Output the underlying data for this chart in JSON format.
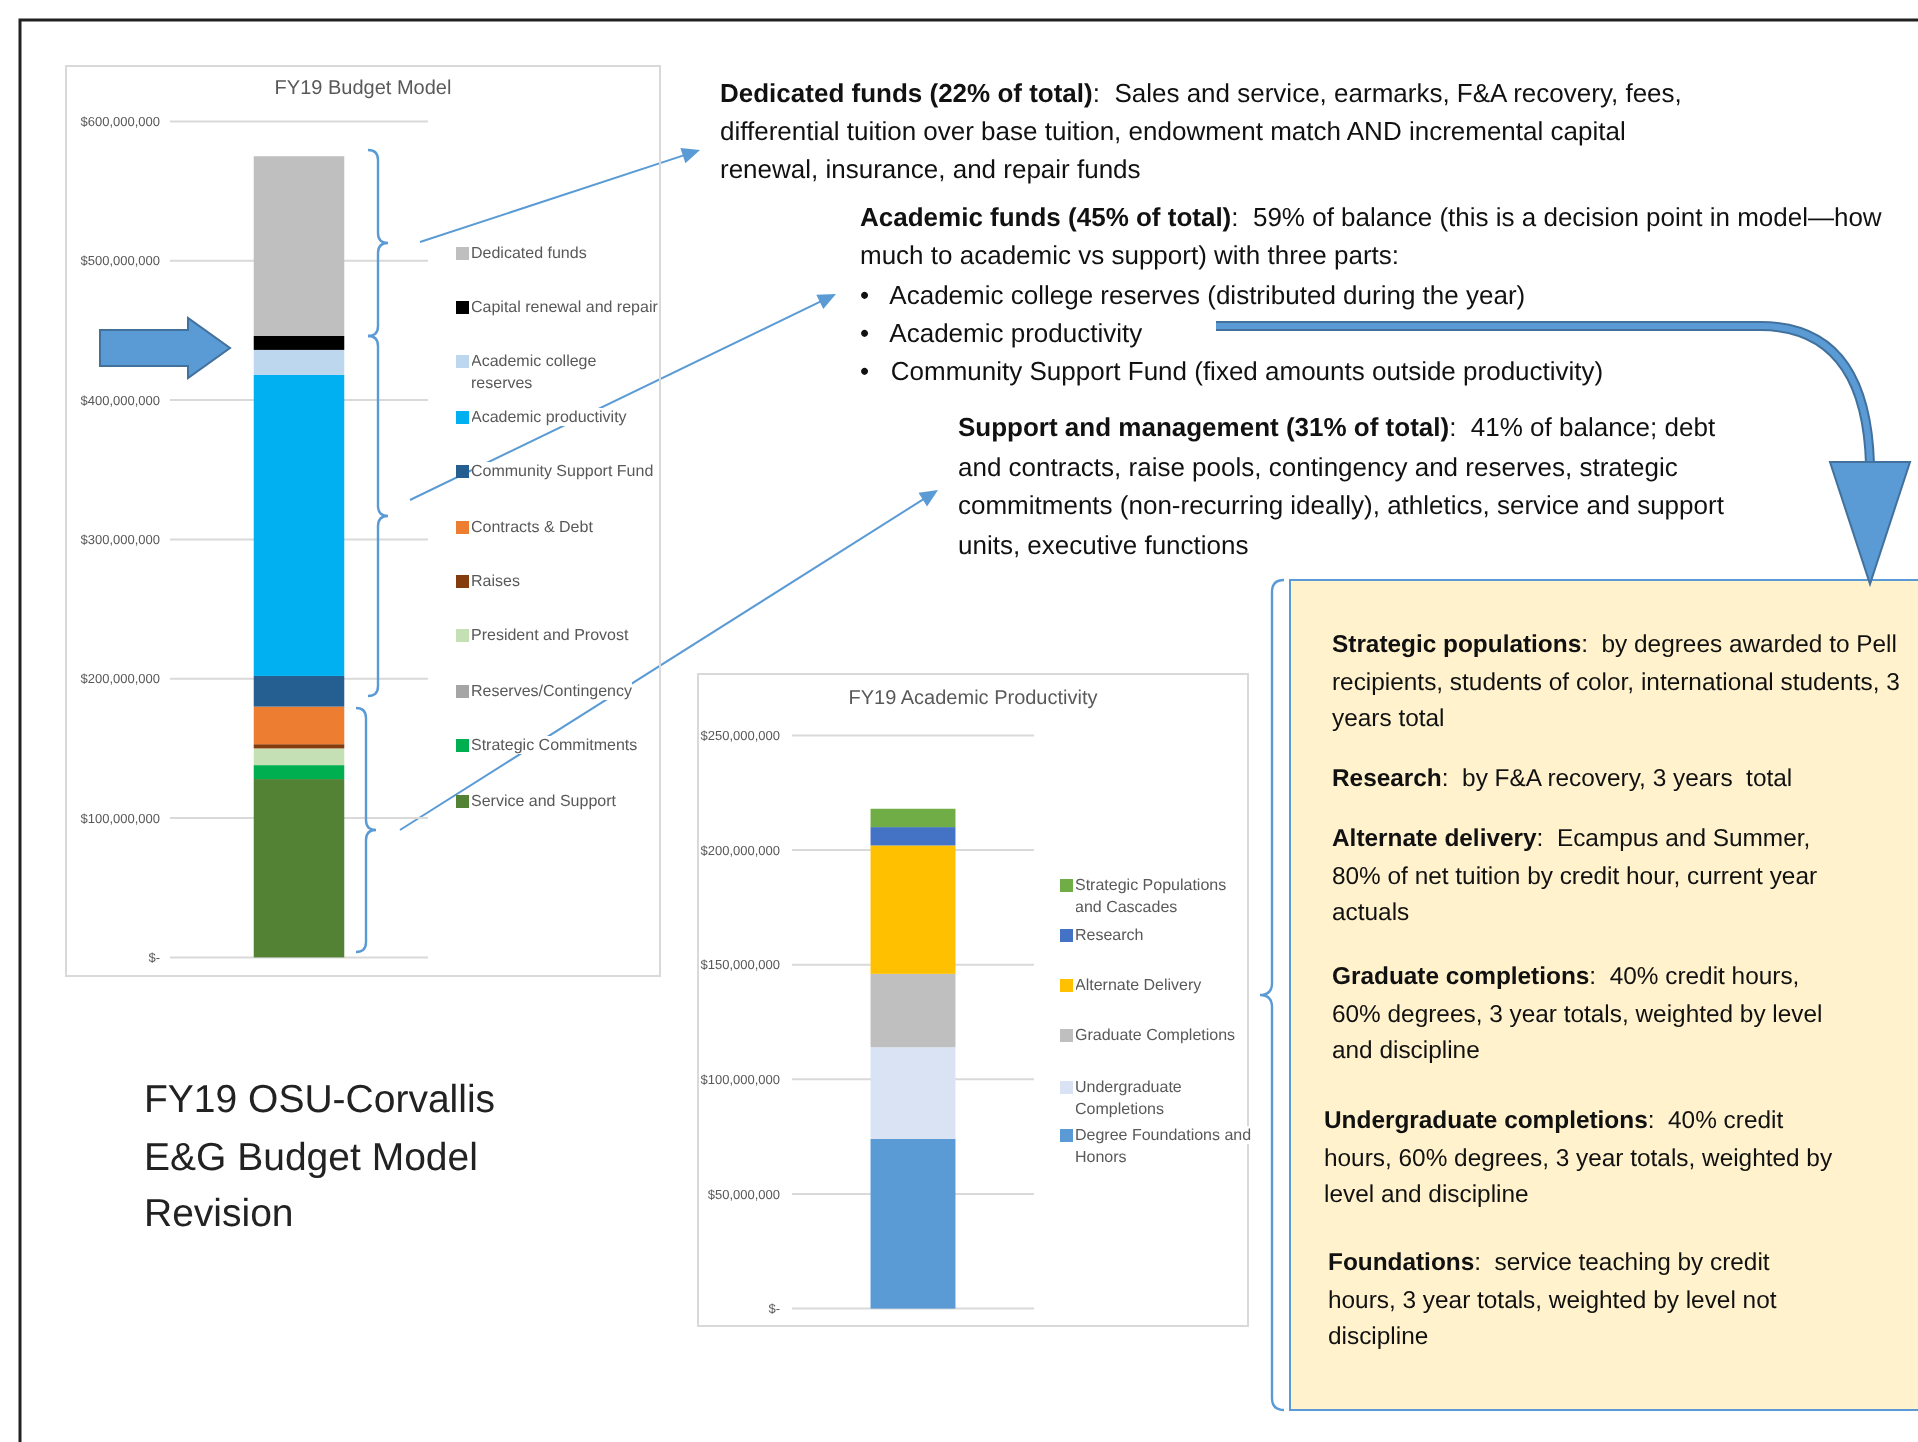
{
  "chart_data": [
    {
      "type": "bar",
      "title": "FY19 Budget Model",
      "categories": [
        null
      ],
      "stacked": true,
      "grid": "y",
      "legend": "right",
      "ylim": [
        0,
        600000000
      ],
      "yticks": [
        {
          "value": 0,
          "label": "$-"
        },
        {
          "value": 100000000,
          "label": "$100,000,000"
        },
        {
          "value": 200000000,
          "label": "$200,000,000"
        },
        {
          "value": 300000000,
          "label": "$300,000,000"
        },
        {
          "value": 400000000,
          "label": "$400,000,000"
        },
        {
          "value": 500000000,
          "label": "$500,000,000"
        },
        {
          "value": 600000000,
          "label": "$600,000,000"
        }
      ],
      "series": [
        {
          "name": "Service and Support",
          "color": "#548235",
          "values": [
            128000000
          ]
        },
        {
          "name": "Strategic Commitments",
          "color": "#00b050",
          "values": [
            10000000
          ]
        },
        {
          "name": "Reserves/Contingency",
          "color": "#a5a5a5",
          "values": [
            0
          ]
        },
        {
          "name": "President and Provost",
          "color": "#c5e0b4",
          "values": [
            12000000
          ]
        },
        {
          "name": "Raises",
          "color": "#843c0c",
          "values": [
            3000000
          ]
        },
        {
          "name": "Contracts & Debt",
          "color": "#ed7d31",
          "values": [
            27000000
          ]
        },
        {
          "name": "Community Support Fund",
          "color": "#255e91",
          "values": [
            22000000
          ]
        },
        {
          "name": "Academic productivity",
          "color": "#00b0f0",
          "values": [
            216000000
          ]
        },
        {
          "name": "Academic college reserves",
          "color": "#bdd7ee",
          "values": [
            18000000
          ]
        },
        {
          "name": "Capital renewal and repair",
          "color": "#000000",
          "values": [
            10000000
          ]
        },
        {
          "name": "Dedicated funds",
          "color": "#bfbfbf",
          "values": [
            129000000
          ]
        }
      ]
    },
    {
      "type": "bar",
      "title": "FY19 Academic Productivity",
      "categories": [
        null
      ],
      "stacked": true,
      "grid": "y",
      "legend": "right",
      "ylim": [
        0,
        250000000
      ],
      "yticks": [
        {
          "value": 0,
          "label": "$-"
        },
        {
          "value": 50000000,
          "label": "$50,000,000"
        },
        {
          "value": 100000000,
          "label": "$100,000,000"
        },
        {
          "value": 150000000,
          "label": "$150,000,000"
        },
        {
          "value": 200000000,
          "label": "$200,000,000"
        },
        {
          "value": 250000000,
          "label": "$250,000,000"
        }
      ],
      "series": [
        {
          "name": "Degree Foundations and Honors",
          "color": "#5b9bd5",
          "values": [
            74000000
          ]
        },
        {
          "name": "Undergraduate Completions",
          "color": "#dae3f3",
          "values": [
            40000000
          ]
        },
        {
          "name": "Graduate Completions",
          "color": "#bfbfbf",
          "values": [
            32000000
          ]
        },
        {
          "name": "Alternate Delivery",
          "color": "#ffc000",
          "values": [
            56000000
          ]
        },
        {
          "name": "Research",
          "color": "#4472c4",
          "values": [
            8000000
          ]
        },
        {
          "name": "Strategic Populations and Cascades",
          "color": "#70ad47",
          "values": [
            8000000
          ]
        }
      ]
    },
    {
      "type": "other",
      "title": "FY19 OSU-Corvallis E&G Budget Model Revision",
      "annotations": [
        "Dedicated funds (22% of total):  Sales and service, earmarks, F&A recovery, fees, differential tuition over base tuition, endowment match AND incremental capital renewal, insurance, and repair funds",
        "Academic funds (45% of total):  59% of balance (this is a decision point in model—how much to academic vs support) with three parts:",
        "•   Academic college reserves (distributed during the year)",
        "•   Academic productivity",
        "•   Community Support Fund (fixed amounts outside productivity)",
        "Support and management (31% of total):  41% of balance; debt and contracts, raise pools, contingency and reserves, strategic commitments (non-recurring ideally), athletics, service and support units, executive functions",
        "Strategic populations:  by degrees awarded to Pell recipients, students of color, international students, 3 years total",
        "Research:  by F&A recovery, 3 years  total",
        "Alternate delivery:  Ecampus and Summer, 80% of net tuition by credit hour, current year actuals",
        "Graduate completions:  40% credit hours, 60% degrees, 3 year totals, weighted by level and discipline",
        "Undergraduate completions:  40% credit hours, 60% degrees, 3 year totals, weighted by level and discipline",
        "Foundations:  service teaching by credit hours, 3 year totals, weighted by level not discipline"
      ]
    }
  ]
}
